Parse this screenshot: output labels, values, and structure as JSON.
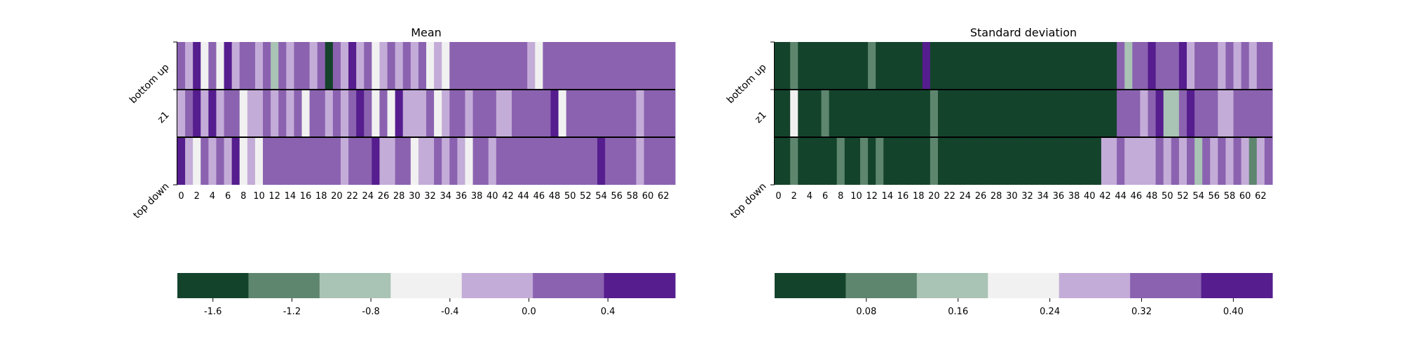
{
  "chart_data": [
    {
      "type": "heatmap",
      "title": "Mean",
      "rows": [
        "bottom up",
        "z1",
        "top down"
      ],
      "n_columns": 64,
      "x_ticks": [
        "0",
        "2",
        "4",
        "6",
        "8",
        "10",
        "12",
        "14",
        "16",
        "18",
        "20",
        "22",
        "24",
        "26",
        "28",
        "30",
        "32",
        "34",
        "36",
        "38",
        "40",
        "42",
        "44",
        "46",
        "48",
        "50",
        "52",
        "54",
        "56",
        "58",
        "60",
        "62"
      ],
      "colorbar": {
        "colors": [
          "#14432c",
          "#5e866f",
          "#a9c3b4",
          "#f1f1f1",
          "#c4acd8",
          "#8b62b0",
          "#551d8e"
        ],
        "boundaries": [
          -1.78,
          -1.42,
          -1.06,
          -0.7,
          -0.34,
          0.02,
          0.38,
          0.74
        ],
        "ticks": [
          "-1.6",
          "-1.2",
          "-0.8",
          "-0.4",
          "0.0",
          "0.4"
        ],
        "tick_values": [
          -1.6,
          -1.2,
          -0.8,
          -0.4,
          0.0,
          0.4
        ]
      },
      "values": [
        [
          0.2,
          -0.2,
          0.5,
          -0.5,
          0.2,
          -0.5,
          0.5,
          -0.2,
          0.2,
          0.2,
          -0.2,
          0.2,
          -0.9,
          0.2,
          -0.2,
          0.2,
          0.2,
          -0.2,
          0.2,
          -1.7,
          0.2,
          -0.2,
          0.5,
          -0.2,
          0.2,
          -0.5,
          -0.2,
          0.2,
          -0.2,
          0.2,
          -0.2,
          0.2,
          -0.5,
          -0.2,
          -0.5,
          0.2,
          0.2,
          0.2,
          0.2,
          0.2,
          0.2,
          0.2,
          0.2,
          0.2,
          0.2,
          -0.2,
          -0.5,
          0.2,
          0.2,
          0.2,
          0.2,
          0.2,
          0.2,
          0.2,
          0.2,
          0.2,
          0.2,
          0.2,
          0.2,
          0.2,
          0.2,
          0.2,
          0.2,
          0.2
        ],
        [
          -0.2,
          0.2,
          0.5,
          -0.2,
          0.5,
          -0.2,
          0.2,
          0.2,
          -0.5,
          -0.2,
          -0.2,
          0.2,
          -0.2,
          0.2,
          -0.2,
          0.2,
          -0.5,
          0.2,
          0.2,
          -0.2,
          0.2,
          -0.2,
          0.2,
          0.5,
          0.2,
          -0.5,
          0.2,
          -0.5,
          0.5,
          -0.2,
          -0.2,
          -0.2,
          0.2,
          -0.5,
          -0.2,
          0.2,
          0.2,
          -0.2,
          0.2,
          0.2,
          0.2,
          -0.2,
          -0.2,
          0.2,
          0.2,
          0.2,
          0.2,
          0.2,
          0.5,
          -0.5,
          0.2,
          0.2,
          0.2,
          0.2,
          0.2,
          0.2,
          0.2,
          0.2,
          0.2,
          -0.2,
          0.2,
          0.2,
          0.2,
          0.2
        ],
        [
          0.5,
          -0.2,
          -0.5,
          0.2,
          -0.2,
          0.2,
          -0.2,
          0.5,
          -0.5,
          -0.2,
          -0.5,
          0.2,
          0.2,
          0.2,
          0.2,
          0.2,
          0.2,
          0.2,
          0.2,
          0.2,
          0.2,
          -0.2,
          0.2,
          0.2,
          0.2,
          0.5,
          -0.2,
          -0.2,
          0.2,
          0.2,
          -0.5,
          -0.2,
          -0.2,
          0.2,
          -0.2,
          0.2,
          -0.2,
          -0.5,
          0.2,
          0.2,
          -0.2,
          0.2,
          0.2,
          0.2,
          0.2,
          0.2,
          0.2,
          0.2,
          0.2,
          0.2,
          0.2,
          0.2,
          0.2,
          0.2,
          0.5,
          0.2,
          0.2,
          0.2,
          0.2,
          -0.2,
          0.2,
          0.2,
          0.2,
          0.2
        ]
      ]
    },
    {
      "type": "heatmap",
      "title": "Standard deviation",
      "rows": [
        "bottom up",
        "z1",
        "top down"
      ],
      "n_columns": 64,
      "x_ticks": [
        "0",
        "2",
        "4",
        "6",
        "8",
        "10",
        "12",
        "14",
        "16",
        "18",
        "20",
        "22",
        "24",
        "26",
        "28",
        "30",
        "32",
        "34",
        "36",
        "38",
        "40",
        "42",
        "44",
        "46",
        "48",
        "50",
        "52",
        "54",
        "56",
        "58",
        "60",
        "62"
      ],
      "colorbar": {
        "colors": [
          "#14432c",
          "#5e866f",
          "#a9c3b4",
          "#f1f1f1",
          "#c4acd8",
          "#8b62b0",
          "#551d8e"
        ],
        "boundaries": [
          0.0,
          0.062,
          0.124,
          0.186,
          0.248,
          0.31,
          0.372,
          0.434
        ],
        "ticks": [
          "0.08",
          "0.16",
          "0.24",
          "0.32",
          "0.40"
        ],
        "tick_values": [
          0.08,
          0.16,
          0.24,
          0.32,
          0.4
        ]
      },
      "values": [
        [
          0.03,
          0.03,
          0.09,
          0.03,
          0.03,
          0.03,
          0.03,
          0.03,
          0.03,
          0.03,
          0.03,
          0.03,
          0.09,
          0.03,
          0.03,
          0.03,
          0.03,
          0.03,
          0.03,
          0.41,
          0.03,
          0.03,
          0.03,
          0.03,
          0.03,
          0.03,
          0.03,
          0.03,
          0.03,
          0.03,
          0.03,
          0.03,
          0.03,
          0.03,
          0.03,
          0.03,
          0.03,
          0.03,
          0.03,
          0.03,
          0.03,
          0.03,
          0.03,
          0.03,
          0.34,
          0.15,
          0.34,
          0.34,
          0.41,
          0.34,
          0.34,
          0.34,
          0.41,
          0.28,
          0.34,
          0.34,
          0.34,
          0.28,
          0.34,
          0.28,
          0.34,
          0.28,
          0.34,
          0.34
        ],
        [
          0.03,
          0.03,
          0.22,
          0.03,
          0.03,
          0.03,
          0.09,
          0.03,
          0.03,
          0.03,
          0.03,
          0.03,
          0.03,
          0.03,
          0.03,
          0.03,
          0.03,
          0.03,
          0.03,
          0.03,
          0.09,
          0.03,
          0.03,
          0.03,
          0.03,
          0.03,
          0.03,
          0.03,
          0.03,
          0.03,
          0.03,
          0.03,
          0.03,
          0.03,
          0.03,
          0.03,
          0.03,
          0.03,
          0.03,
          0.03,
          0.03,
          0.03,
          0.03,
          0.03,
          0.34,
          0.34,
          0.34,
          0.28,
          0.34,
          0.41,
          0.15,
          0.15,
          0.34,
          0.41,
          0.34,
          0.34,
          0.34,
          0.28,
          0.28,
          0.34,
          0.34,
          0.34,
          0.34,
          0.34
        ],
        [
          0.03,
          0.03,
          0.09,
          0.03,
          0.03,
          0.03,
          0.03,
          0.03,
          0.09,
          0.03,
          0.03,
          0.09,
          0.03,
          0.09,
          0.03,
          0.03,
          0.03,
          0.03,
          0.03,
          0.03,
          0.09,
          0.03,
          0.03,
          0.03,
          0.03,
          0.03,
          0.03,
          0.03,
          0.03,
          0.03,
          0.03,
          0.03,
          0.03,
          0.03,
          0.03,
          0.03,
          0.03,
          0.03,
          0.03,
          0.03,
          0.03,
          0.03,
          0.28,
          0.28,
          0.34,
          0.28,
          0.28,
          0.28,
          0.28,
          0.34,
          0.28,
          0.34,
          0.28,
          0.34,
          0.15,
          0.34,
          0.28,
          0.34,
          0.28,
          0.34,
          0.28,
          0.09,
          0.28,
          0.34
        ]
      ]
    }
  ]
}
